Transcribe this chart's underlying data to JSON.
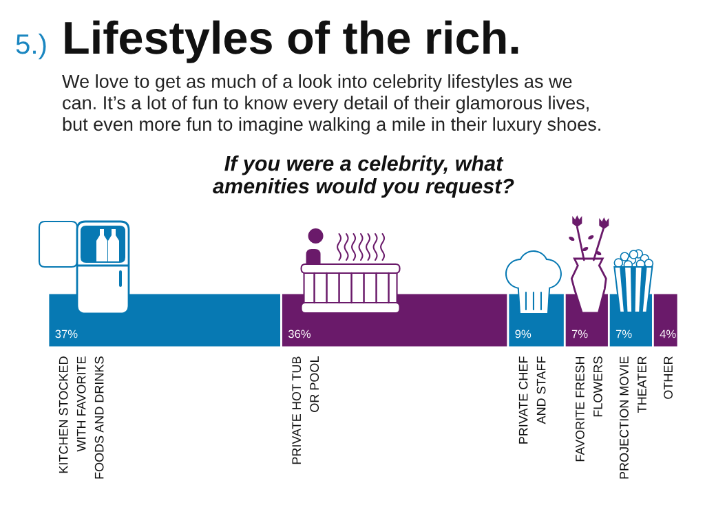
{
  "chart_data": {
    "type": "bar",
    "orientation": "horizontal",
    "stacked": true,
    "title": "Lifestyles of the rich.",
    "subtitle": "We love to get as much of a look into celebrity lifestyles as we\ncan. It’s a lot of fun to know every detail of their glamorous lives,\nbut even more fun to imagine walking a mile in their luxury shoes.",
    "annotations": [
      "5.)",
      "If you were a celebrity, what\namenities would you request?"
    ],
    "categories": [
      null
    ],
    "xlim": [
      0,
      100
    ],
    "tick_labels": false,
    "series": [
      {
        "name": "KITCHEN STOCKED\nWITH FAVORITE\nFOODS AND DRINKS",
        "color": "#0779b3",
        "values": [
          37
        ],
        "value_labels": [
          "37%"
        ]
      },
      {
        "name": "PRIVATE HOT TUB\nOR POOL",
        "color": "#6a1a6a",
        "values": [
          36
        ],
        "value_labels": [
          "36%"
        ]
      },
      {
        "name": "PRIVATE CHEF\nAND STAFF",
        "color": "#0779b3",
        "values": [
          9
        ],
        "value_labels": [
          "9%"
        ]
      },
      {
        "name": "FAVORITE FRESH\nFLOWERS",
        "color": "#6a1a6a",
        "values": [
          7
        ],
        "value_labels": [
          "7%"
        ]
      },
      {
        "name": "PROJECTION MOVIE\nTHEATER",
        "color": "#0779b3",
        "values": [
          7
        ],
        "value_labels": [
          "7%"
        ]
      },
      {
        "name": "OTHER",
        "color": "#6a1a6a",
        "values": [
          4
        ],
        "value_labels": [
          "4%"
        ]
      }
    ]
  }
}
